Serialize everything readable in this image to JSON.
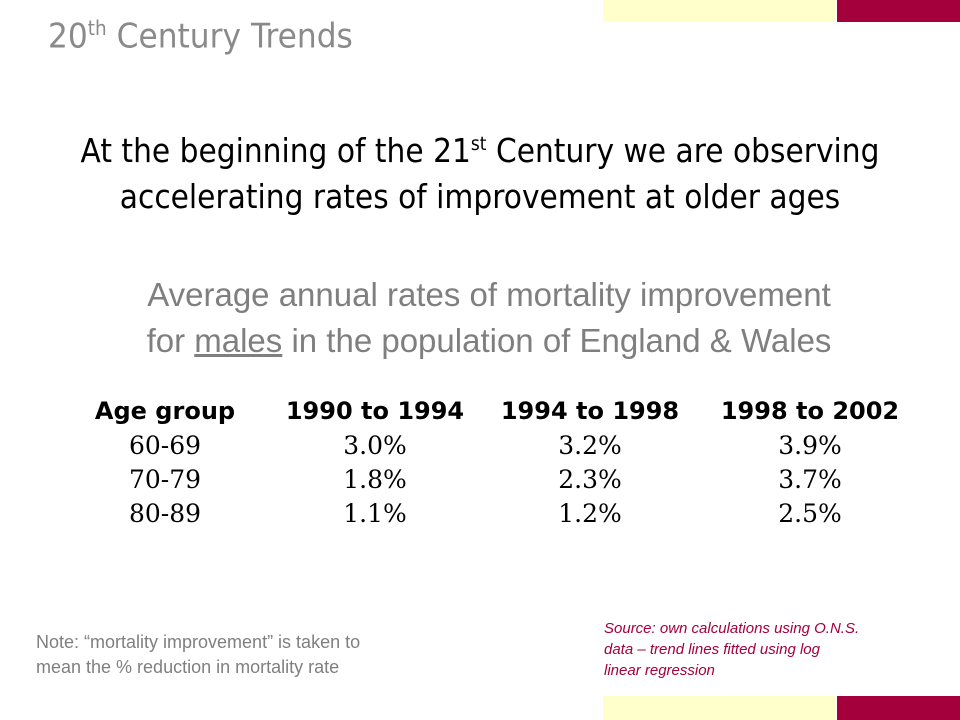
{
  "slide": {
    "title_main": "20",
    "title_sup": "th",
    "title_rest": " Century Trends"
  },
  "heading": {
    "line1_pre": "At the beginning of the 21",
    "line1_sup": "st",
    "line1_post": " Century we are observing",
    "line2": "accelerating rates of improvement at older ages"
  },
  "subtitle": {
    "line1": "Average annual rates of mortality improvement",
    "line2_pre": "for ",
    "line2_underlined": "males",
    "line2_post": " in the population of England & Wales"
  },
  "table": {
    "headers": [
      "Age group",
      "1990 to 1994",
      "1994 to 1998",
      "1998 to 2002"
    ],
    "rows": [
      [
        "60-69",
        "3.0%",
        "3.2%",
        "3.9%"
      ],
      [
        "70-79",
        "1.8%",
        "2.3%",
        "3.7%"
      ],
      [
        "80-89",
        "1.1%",
        "1.2%",
        "2.5%"
      ]
    ]
  },
  "note": {
    "line1": "Note: “mortality improvement” is taken to",
    "line2": "mean the % reduction in mortality rate"
  },
  "source": {
    "line1": "Source: own calculations using O.N.S.",
    "line2": "data – trend lines fitted using log",
    "line3": "linear regression"
  },
  "colors": {
    "accent": "#a3003c",
    "cream": "#ffffcc",
    "gray_text": "#7f7f7f"
  }
}
